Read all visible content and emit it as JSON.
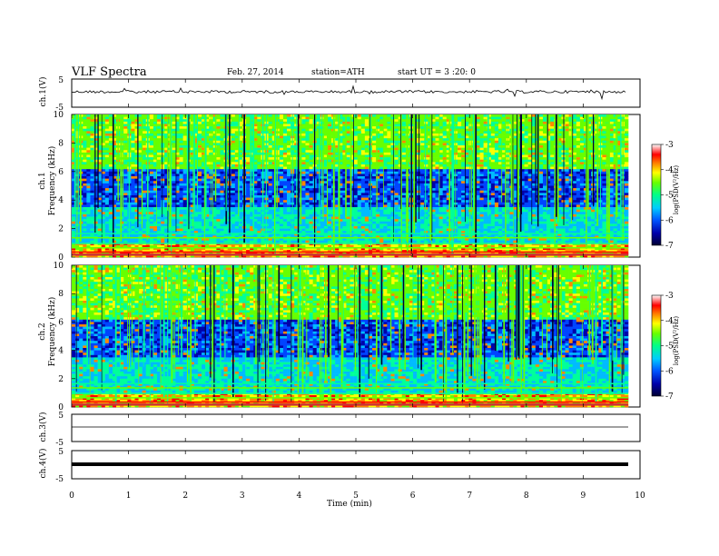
{
  "header": {
    "title": "VLF Spectra",
    "date": "Feb. 27, 2014",
    "station": "station=ATH",
    "start": "start  UT =  3 :20: 0"
  },
  "chart_data": [
    {
      "type": "line",
      "ylabel": "ch.1(V)",
      "ylim": [
        -5,
        5
      ],
      "yticks": [
        "5",
        "-5"
      ],
      "xlim": [
        0,
        10
      ],
      "description_values": {
        "baseline": -0.5
      }
    },
    {
      "type": "heatmap",
      "ylabel": "ch.1\nFrequency (kHz)",
      "ylabel_line1": "ch.1",
      "ylabel_line2": "Frequency (kHz)",
      "ylim": [
        0,
        10
      ],
      "yticks": [
        "10",
        "8",
        "6",
        "4",
        "2",
        "0"
      ],
      "xlim": [
        0,
        9.8
      ],
      "colorbar": {
        "label": "log(PSD(V²/Hz)",
        "ticks": [
          "-3",
          "-4",
          "-5",
          "-6",
          "-7"
        ],
        "range": [
          -7,
          -3
        ]
      }
    },
    {
      "type": "heatmap",
      "ylabel_line1": "ch.2",
      "ylabel_line2": "Frequency (kHz)",
      "ylim": [
        0,
        10
      ],
      "yticks": [
        "10",
        "8",
        "6",
        "4",
        "2",
        "0"
      ],
      "xlim": [
        0,
        9.8
      ],
      "colorbar": {
        "label": "log(PSD(V²/Hz)",
        "ticks": [
          "-3",
          "-4",
          "-5",
          "-6",
          "-7"
        ],
        "range": [
          -7,
          -3
        ]
      }
    },
    {
      "type": "line",
      "ylabel": "ch.3(V)",
      "ylim": [
        -5,
        5
      ],
      "yticks": [
        "5",
        "-5"
      ],
      "xlim": [
        0,
        10
      ],
      "values_constant": 0
    },
    {
      "type": "line",
      "ylabel": "ch.4(V)",
      "ylim": [
        -5,
        5
      ],
      "yticks": [
        "5",
        "-5"
      ],
      "xlim": [
        0,
        10
      ],
      "values_constant": 0
    }
  ],
  "xaxis": {
    "label": "Time  (min)",
    "ticks": [
      "0",
      "1",
      "2",
      "3",
      "4",
      "5",
      "6",
      "7",
      "8",
      "9",
      "10"
    ]
  },
  "colors": {
    "cmap": [
      "#000033",
      "#0000aa",
      "#0044ff",
      "#00bbff",
      "#00ff99",
      "#66ff00",
      "#ffff00",
      "#ff8800",
      "#ff0000",
      "#ffffff"
    ]
  }
}
